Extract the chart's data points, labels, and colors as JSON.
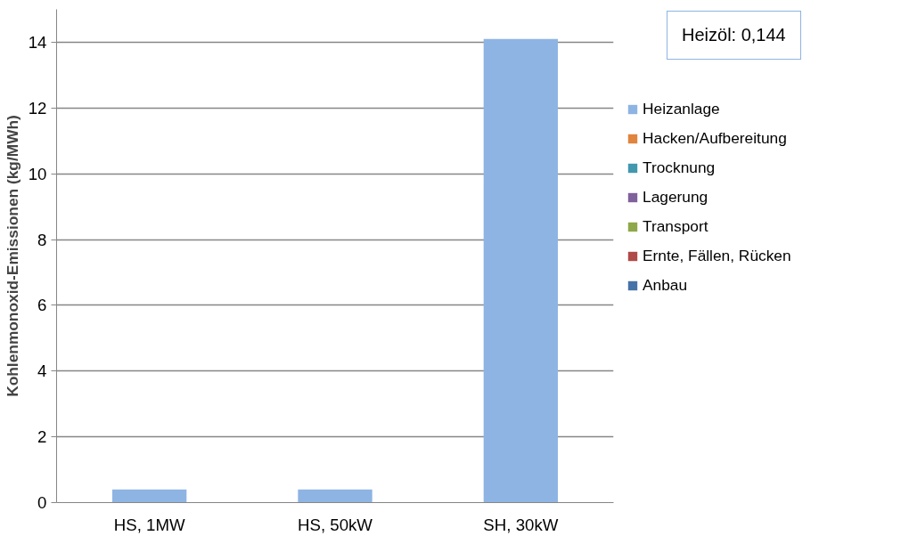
{
  "chart_data": {
    "type": "bar",
    "stacked": true,
    "ylabel": "Kohlenmonoxid-Emissionen (kg/MWh)",
    "categories": [
      "HS, 1MW",
      "HS, 50kW",
      "SH, 30kW"
    ],
    "series": [
      {
        "name": "Anbau",
        "color": "#4672a8",
        "values": [
          0,
          0,
          0
        ]
      },
      {
        "name": "Ernte, Fällen, Rücken",
        "color": "#b04a48",
        "values": [
          0,
          0,
          0
        ]
      },
      {
        "name": "Transport",
        "color": "#8ea84a",
        "values": [
          0,
          0,
          0
        ]
      },
      {
        "name": "Lagerung",
        "color": "#7f619c",
        "values": [
          0,
          0,
          0
        ]
      },
      {
        "name": "Trocknung",
        "color": "#4198af",
        "values": [
          0,
          0,
          0
        ]
      },
      {
        "name": "Hacken/Aufbereitung",
        "color": "#e0843e",
        "values": [
          0,
          0,
          0
        ]
      },
      {
        "name": "Heizanlage",
        "color": "#8eb4e3",
        "values": [
          0.4,
          0.4,
          14.1
        ]
      }
    ],
    "ylim": [
      0,
      15
    ],
    "yticks": [
      0,
      2,
      4,
      6,
      8,
      10,
      12,
      14
    ],
    "grid": "y",
    "legend": "right",
    "annotations": [
      "Heizöl: 0,144"
    ]
  }
}
